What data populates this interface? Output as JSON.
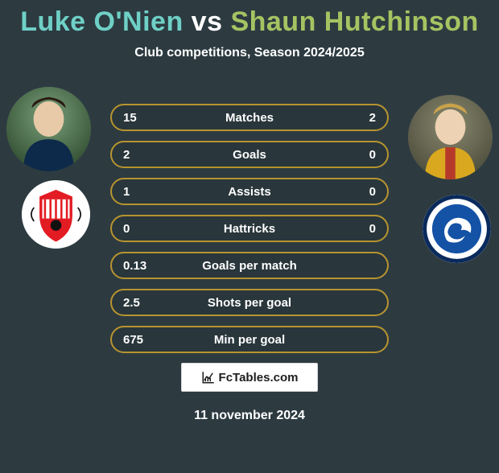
{
  "title": {
    "player1": "Luke O'Nien",
    "vs": " vs ",
    "player2": "Shaun Hutchinson",
    "color_player1": "#6fd0c6",
    "color_vs": "#ffffff",
    "color_player2": "#a6c362"
  },
  "subtitle": "Club competitions, Season 2024/2025",
  "stats": {
    "border_color": "#b7942f",
    "rows": [
      {
        "label": "Matches",
        "left": "15",
        "right": "2"
      },
      {
        "label": "Goals",
        "left": "2",
        "right": "0"
      },
      {
        "label": "Assists",
        "left": "1",
        "right": "0"
      },
      {
        "label": "Hattricks",
        "left": "0",
        "right": "0"
      },
      {
        "label": "Goals per match",
        "left": "0.13",
        "right": ""
      },
      {
        "label": "Shots per goal",
        "left": "2.5",
        "right": ""
      },
      {
        "label": "Min per goal",
        "left": "675",
        "right": ""
      }
    ]
  },
  "badge": {
    "text": "FcTables.com"
  },
  "date": "11 november 2024",
  "colors": {
    "background": "#2d3b41",
    "text": "#ffffff"
  },
  "avatars": {
    "left_alt": "player-photo-onien",
    "right_alt": "player-photo-hutchinson"
  },
  "crests": {
    "left_alt": "sunderland-crest",
    "right_alt": "millwall-crest"
  }
}
